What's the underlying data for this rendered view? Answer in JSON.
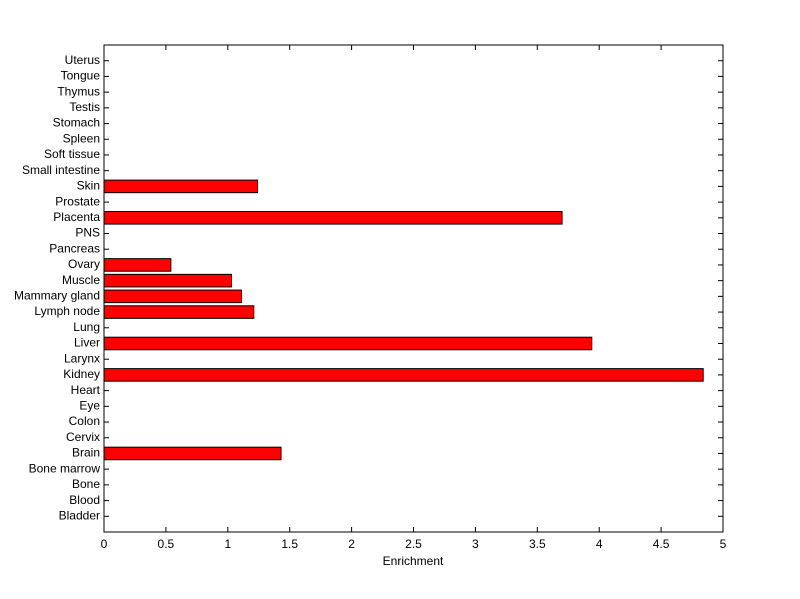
{
  "chart_data": {
    "type": "barh",
    "x_label": "Enrichment",
    "categories": [
      "Bladder",
      "Blood",
      "Bone",
      "Bone marrow",
      "Brain",
      "Cervix",
      "Colon",
      "Eye",
      "Heart",
      "Kidney",
      "Larynx",
      "Liver",
      "Lung",
      "Lymph node",
      "Mammary gland",
      "Muscle",
      "Ovary",
      "Pancreas",
      "PNS",
      "Placenta",
      "Prostate",
      "Skin",
      "Small intestine",
      "Soft tissue",
      "Spleen",
      "Stomach",
      "Testis",
      "Thymus",
      "Tongue",
      "Uterus"
    ],
    "values": [
      0,
      0,
      0,
      0,
      1.43,
      0,
      0,
      0,
      0,
      4.84,
      0,
      3.94,
      0,
      1.21,
      1.11,
      1.03,
      0.54,
      0,
      0,
      3.7,
      0,
      1.24,
      0,
      0,
      0,
      0,
      0,
      0,
      0,
      0
    ],
    "color": "#ff0000",
    "xlim": [
      0,
      5
    ],
    "xticks": [
      0,
      0.5,
      1,
      1.5,
      2,
      2.5,
      3,
      3.5,
      4,
      4.5,
      5
    ],
    "grid": false
  }
}
